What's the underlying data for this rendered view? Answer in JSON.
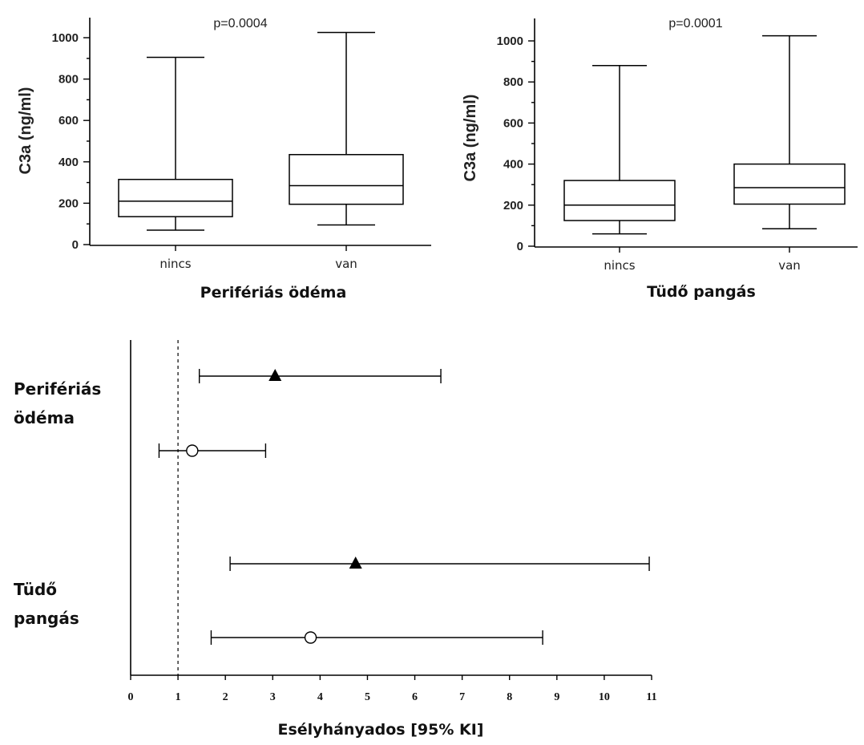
{
  "chart_data": [
    {
      "type": "box",
      "annotation": "p=0.0004",
      "ylabel": "C3a (ng/ml)",
      "xlabel": "Perifériás ödéma",
      "ylim": [
        0,
        1000
      ],
      "yticks": [
        0,
        200,
        400,
        600,
        800,
        1000
      ],
      "categories": [
        "nincs",
        "van"
      ],
      "boxes": [
        {
          "category": "nincs",
          "min": 70,
          "q1": 135,
          "median": 210,
          "q3": 315,
          "max": 905
        },
        {
          "category": "van",
          "min": 95,
          "q1": 195,
          "median": 285,
          "q3": 435,
          "max": 1025
        }
      ]
    },
    {
      "type": "box",
      "annotation": "p=0.0001",
      "ylabel": "C3a (ng/ml)",
      "xlabel": "Tüdő pangás",
      "ylim": [
        0,
        1000
      ],
      "yticks": [
        0,
        200,
        400,
        600,
        800,
        1000
      ],
      "categories": [
        "nincs",
        "van"
      ],
      "boxes": [
        {
          "category": "nincs",
          "min": 60,
          "q1": 125,
          "median": 200,
          "q3": 320,
          "max": 880
        },
        {
          "category": "van",
          "min": 85,
          "q1": 205,
          "median": 285,
          "q3": 400,
          "max": 1025
        }
      ]
    },
    {
      "type": "forest",
      "xlabel": "Esélyhányados [95% KI]",
      "xlim": [
        0,
        11
      ],
      "xticks": [
        0,
        1,
        2,
        3,
        4,
        5,
        6,
        7,
        8,
        9,
        10,
        11
      ],
      "reference_line": 1,
      "groups": [
        {
          "label_lines": [
            "Perifériás",
            "ödéma"
          ],
          "rows": [
            {
              "marker": "filled-triangle",
              "estimate": 3.05,
              "lower": 1.45,
              "upper": 6.55
            },
            {
              "marker": "open-circle",
              "estimate": 1.3,
              "lower": 0.6,
              "upper": 2.85
            }
          ]
        },
        {
          "label_lines": [
            "Tüdő",
            "pangás"
          ],
          "rows": [
            {
              "marker": "filled-triangle",
              "estimate": 4.75,
              "lower": 2.1,
              "upper": 10.95
            },
            {
              "marker": "open-circle",
              "estimate": 3.8,
              "lower": 1.7,
              "upper": 8.7
            }
          ]
        }
      ]
    }
  ]
}
